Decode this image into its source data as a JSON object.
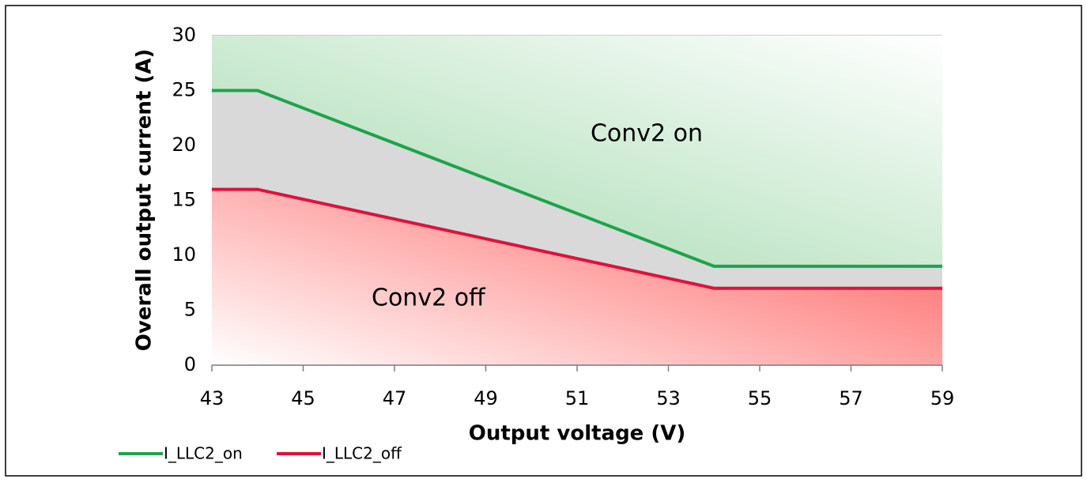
{
  "chart_data": {
    "type": "line",
    "x": [
      43,
      44,
      54,
      59
    ],
    "series": [
      {
        "name": "I_LLC2_on",
        "color": "#1ea34b",
        "values": [
          25,
          25,
          9,
          9
        ]
      },
      {
        "name": "I_LLC2_off",
        "color": "#e0113d",
        "values": [
          16,
          16,
          7,
          7
        ]
      }
    ],
    "xlabel": "Output voltage (V)",
    "ylabel": "Overall output current (A)",
    "annotations": [
      "Conv2 on",
      "Conv2 off"
    ],
    "xlim": [
      43,
      59
    ],
    "xticks": [
      43,
      45,
      47,
      49,
      51,
      53,
      55,
      57,
      59
    ],
    "ylim": [
      0,
      30
    ],
    "yticks": [
      0,
      5,
      10,
      15,
      20,
      25,
      30
    ],
    "grid": true,
    "legend": "bottom-left"
  }
}
